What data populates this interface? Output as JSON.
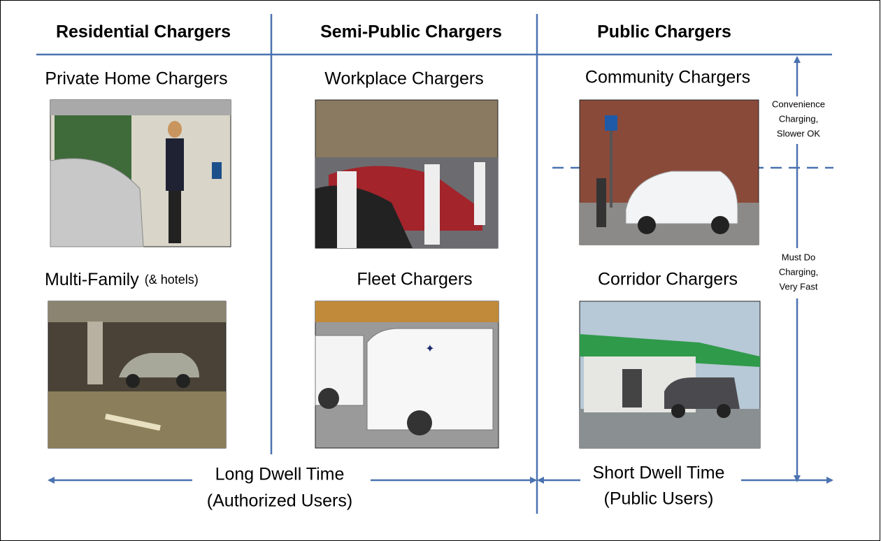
{
  "columns": [
    {
      "header": "Residential Chargers",
      "top": {
        "label": "Private Home Chargers"
      },
      "bottom": {
        "label": "Multi-Family",
        "note": "(& hotels)"
      }
    },
    {
      "header": "Semi-Public Chargers",
      "top": {
        "label": "Workplace Chargers"
      },
      "bottom": {
        "label": "Fleet Chargers"
      }
    },
    {
      "header": "Public Chargers",
      "top": {
        "label": "Community Chargers"
      },
      "bottom": {
        "label": "Corridor Chargers"
      }
    }
  ],
  "side_labels": [
    {
      "lines": [
        "Convenience",
        "Charging,",
        "Slower OK"
      ]
    },
    {
      "lines": [
        "Must Do",
        "Charging,",
        "Very Fast"
      ]
    }
  ],
  "dwell": [
    {
      "lines": [
        "Long Dwell Time",
        "(Authorized Users)"
      ]
    },
    {
      "lines": [
        "Short Dwell Time",
        "(Public Users)"
      ]
    }
  ]
}
